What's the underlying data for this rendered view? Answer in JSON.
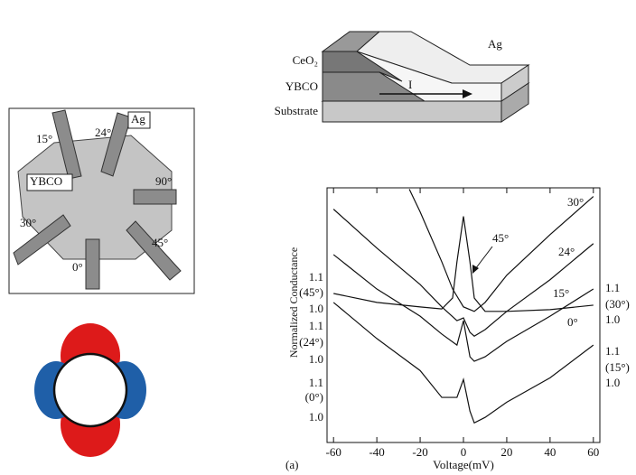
{
  "junction": {
    "labels": {
      "ceo2": "CeO₂",
      "ybco": "YBCO",
      "substrate": "Substrate",
      "ag": "Ag",
      "current": "I"
    }
  },
  "sample": {
    "labels": {
      "a15": "15°",
      "a24": "24°",
      "ag": "Ag",
      "ybco": "YBCO",
      "a90": "90°",
      "a30": "30°",
      "a45": "45°",
      "a0": "0°"
    }
  },
  "chart_data": {
    "type": "line",
    "panel_label": "(a)",
    "x_label": "Voltage(mV)",
    "y_label": "Normalized Conductance",
    "xlim": [
      -63,
      63
    ],
    "xticks": [
      -60,
      -40,
      -20,
      0,
      20,
      40,
      60
    ],
    "ylim": [
      0.93,
      1.67
    ],
    "series": [
      {
        "name": "30°",
        "color": "#111111",
        "x": [
          -25,
          -20,
          -10,
          -5,
          0,
          5,
          10,
          20,
          40,
          60
        ],
        "values": [
          1.666,
          1.6,
          1.455,
          1.376,
          1.324,
          1.311,
          1.337,
          1.416,
          1.534,
          1.645
        ]
      },
      {
        "name": "24°",
        "color": "#111111",
        "x": [
          -60,
          -40,
          -20,
          -10,
          -3,
          0,
          3,
          5,
          10,
          20,
          40,
          60
        ],
        "values": [
          1.608,
          1.495,
          1.389,
          1.324,
          1.284,
          1.292,
          1.25,
          1.239,
          1.258,
          1.311,
          1.403,
          1.508
        ]
      },
      {
        "name": "15°",
        "color": "#111111",
        "x": [
          -60,
          -40,
          -20,
          -10,
          -3,
          0,
          3,
          5,
          10,
          20,
          40,
          60
        ],
        "values": [
          1.476,
          1.376,
          1.297,
          1.245,
          1.213,
          1.284,
          1.179,
          1.166,
          1.179,
          1.224,
          1.297,
          1.376
        ]
      },
      {
        "name": "0°",
        "color": "#111111",
        "x": [
          -60,
          -40,
          -20,
          -10,
          -3,
          0,
          3,
          5,
          10,
          20,
          40,
          60
        ],
        "values": [
          1.337,
          1.232,
          1.139,
          1.061,
          1.061,
          1.113,
          1.021,
          0.987,
          1.003,
          1.047,
          1.118,
          1.213
        ]
      },
      {
        "name": "45°",
        "color": "#111111",
        "x": [
          -60,
          -40,
          -20,
          -10,
          -5,
          -3,
          0,
          3,
          5,
          10,
          20,
          40,
          60
        ],
        "values": [
          1.363,
          1.337,
          1.324,
          1.318,
          1.35,
          1.455,
          1.587,
          1.455,
          1.35,
          1.311,
          1.311,
          1.316,
          1.329
        ]
      }
    ],
    "left_labels": [
      "1.1",
      "(45°)",
      "1.0",
      "1.1",
      "(24°)",
      "1.0",
      "1.1",
      "(0°)",
      "1.0"
    ],
    "right_labels": [
      "1.1",
      "(30°)",
      "1.0",
      "1.1",
      "(15°)",
      "1.0"
    ]
  }
}
